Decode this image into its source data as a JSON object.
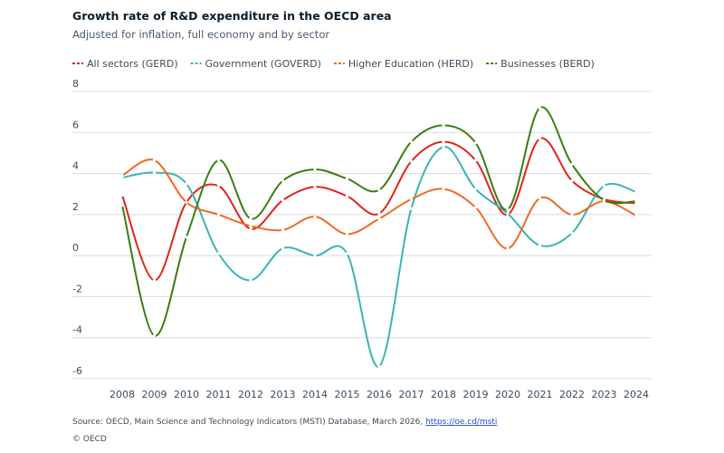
{
  "chart_data": {
    "type": "line",
    "title": "Growth rate of R&D expenditure in the OECD area",
    "subtitle": "Adjusted for inflation, full economy and by sector",
    "x": [
      2008,
      2009,
      2010,
      2011,
      2012,
      2013,
      2014,
      2015,
      2016,
      2017,
      2018,
      2019,
      2020,
      2021,
      2022,
      2023,
      2024
    ],
    "xlim": [
      2008,
      2024
    ],
    "xticks": [
      2008,
      2009,
      2010,
      2011,
      2012,
      2013,
      2014,
      2015,
      2016,
      2017,
      2018,
      2019,
      2020,
      2021,
      2022,
      2023,
      2024
    ],
    "ylim": [
      -6,
      8
    ],
    "yticks": [
      -6,
      -4,
      -2,
      0,
      2,
      4,
      6,
      8
    ],
    "grid": true,
    "legend": "top-left",
    "series": [
      {
        "name": "All sectors (GERD)",
        "color": "#e2231a",
        "values": [
          2.95,
          -1.2,
          2.6,
          3.4,
          1.3,
          2.7,
          3.35,
          2.9,
          2.05,
          4.6,
          5.55,
          4.65,
          2.0,
          5.7,
          3.65,
          2.75,
          2.55
        ]
      },
      {
        "name": "Government (GOVERD)",
        "color": "#3ab4b4",
        "values": [
          3.8,
          4.05,
          3.5,
          0.1,
          -1.2,
          0.35,
          0.0,
          0.1,
          -5.4,
          2.3,
          5.3,
          3.25,
          2.05,
          0.5,
          1.1,
          3.4,
          3.1
        ]
      },
      {
        "name": "Higher Education (HERD)",
        "color": "#f06a1e",
        "values": [
          3.9,
          4.65,
          2.6,
          2.0,
          1.45,
          1.25,
          1.9,
          1.05,
          1.8,
          2.75,
          3.25,
          2.35,
          0.35,
          2.8,
          2.0,
          2.65,
          1.95
        ]
      },
      {
        "name": "Businesses (BERD)",
        "color": "#3a7d12",
        "values": [
          2.45,
          -3.9,
          0.9,
          4.65,
          1.8,
          3.65,
          4.2,
          3.75,
          3.2,
          5.55,
          6.35,
          5.5,
          2.25,
          7.2,
          4.45,
          2.7,
          2.65
        ]
      }
    ],
    "source": "Source: OECD, Main Science and Technology Indicators (MSTI) Database, March 2026, ",
    "source_link": "https://oe.cd/msti",
    "copyright": "© OECD"
  }
}
